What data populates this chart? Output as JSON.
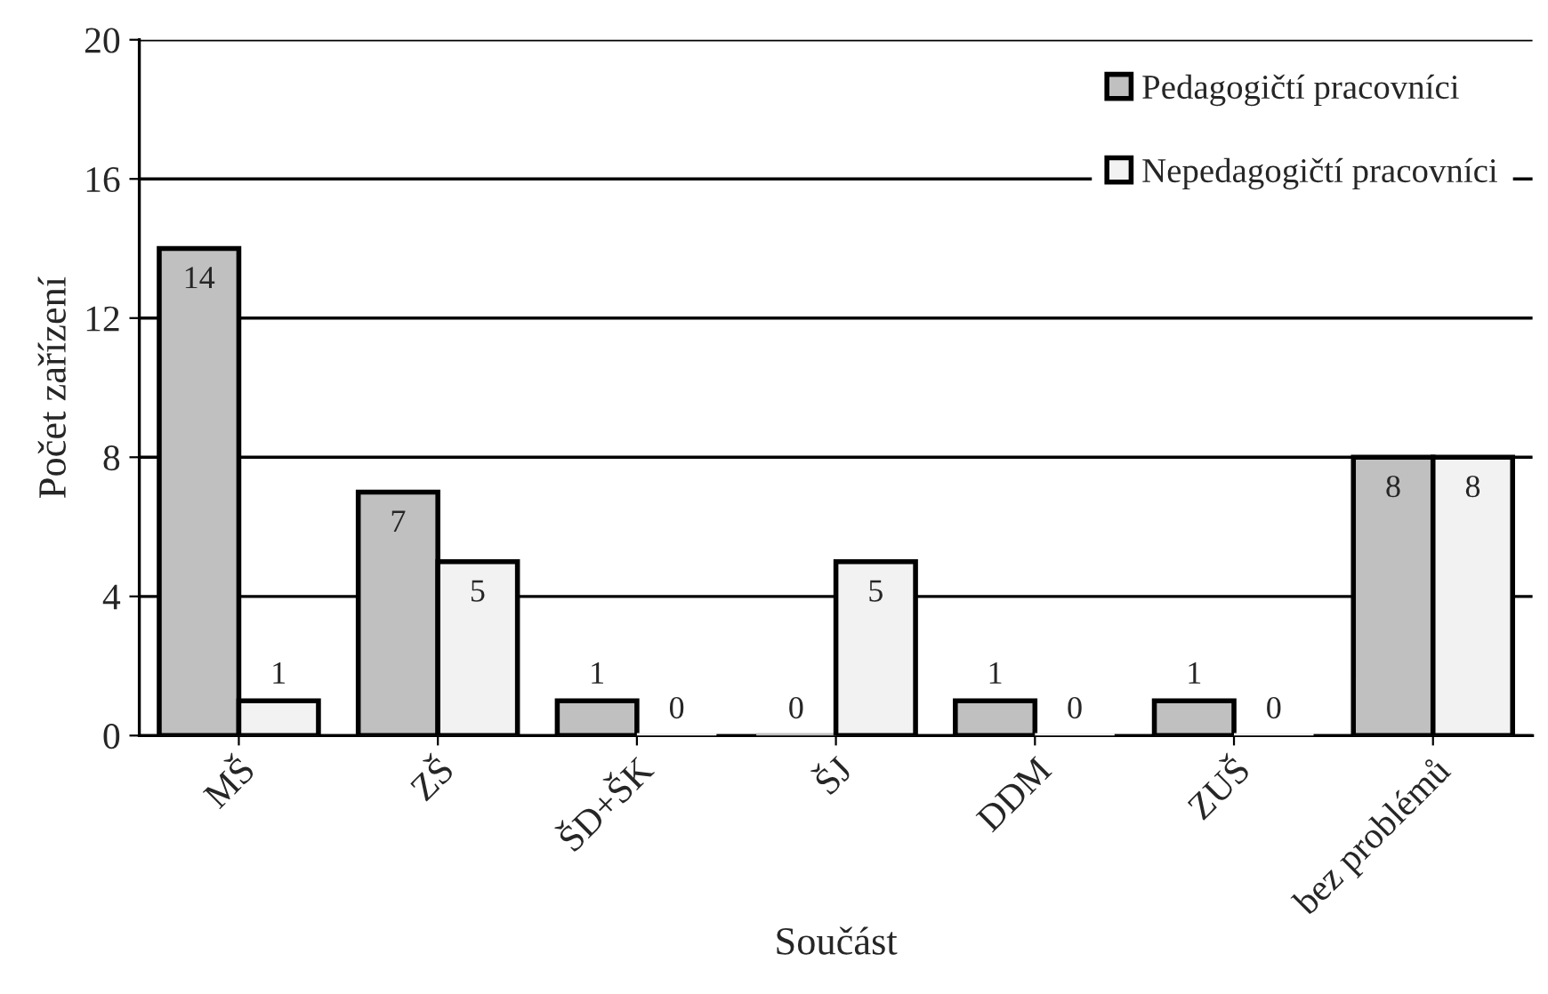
{
  "chart_data": {
    "type": "bar",
    "xlabel": "Součást",
    "ylabel": "Počet zařízení",
    "categories": [
      "MŠ",
      "ZŠ",
      "ŠD+ŠK",
      "ŠJ",
      "DDM",
      "ZUŠ",
      "bez problémů"
    ],
    "series": [
      {
        "name": "Pedagogičtí pracovníci",
        "color": "#c0c0c0",
        "values": [
          14,
          7,
          1,
          0,
          1,
          1,
          8
        ]
      },
      {
        "name": "Nepedagogičtí pracovníci",
        "color": "#f2f2f2",
        "values": [
          1,
          5,
          0,
          5,
          0,
          0,
          8
        ]
      }
    ],
    "ylim": [
      0,
      20
    ],
    "yticks": [
      0,
      4,
      8,
      12,
      16,
      20
    ],
    "grid": "y",
    "legend": "top right",
    "data_labels": true
  }
}
